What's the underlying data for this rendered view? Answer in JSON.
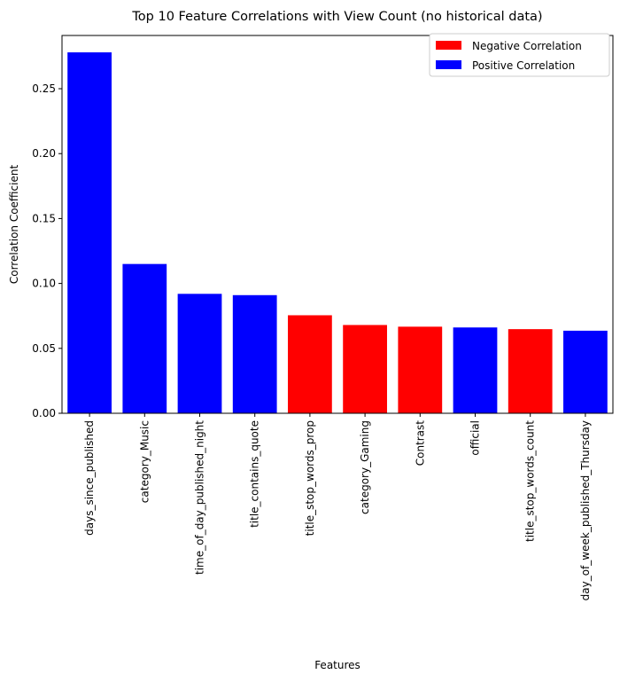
{
  "chart_data": {
    "type": "bar",
    "title": "Top 10 Feature Correlations with View Count (no historical data)",
    "xlabel": "Features",
    "ylabel": "Correlation Coefficient",
    "ylim": [
      0,
      0.291
    ],
    "yticks": [
      "0.00",
      "0.05",
      "0.10",
      "0.15",
      "0.20",
      "0.25"
    ],
    "ytick_values": [
      0,
      0.05,
      0.1,
      0.15,
      0.2,
      0.25
    ],
    "grid": false,
    "legend_placement": "top-right",
    "categories": [
      "days_since_published",
      "category_Music",
      "time_of_day_published_night",
      "title_contains_quote",
      "title_stop_words_prop",
      "category_Gaming",
      "Contrast",
      "official",
      "title_stop_words_count",
      "day_of_week_published_Thursday"
    ],
    "values": [
      0.278,
      0.115,
      0.092,
      0.091,
      0.0755,
      0.068,
      0.0667,
      0.0661,
      0.0648,
      0.0636
    ],
    "sign": [
      "positive",
      "positive",
      "positive",
      "positive",
      "negative",
      "negative",
      "negative",
      "positive",
      "negative",
      "positive"
    ],
    "legend": [
      {
        "label": "Negative Correlation",
        "color": "#ff0000"
      },
      {
        "label": "Positive Correlation",
        "color": "#0000ff"
      }
    ],
    "colors": {
      "positive": "#0000ff",
      "negative": "#ff0000"
    }
  }
}
